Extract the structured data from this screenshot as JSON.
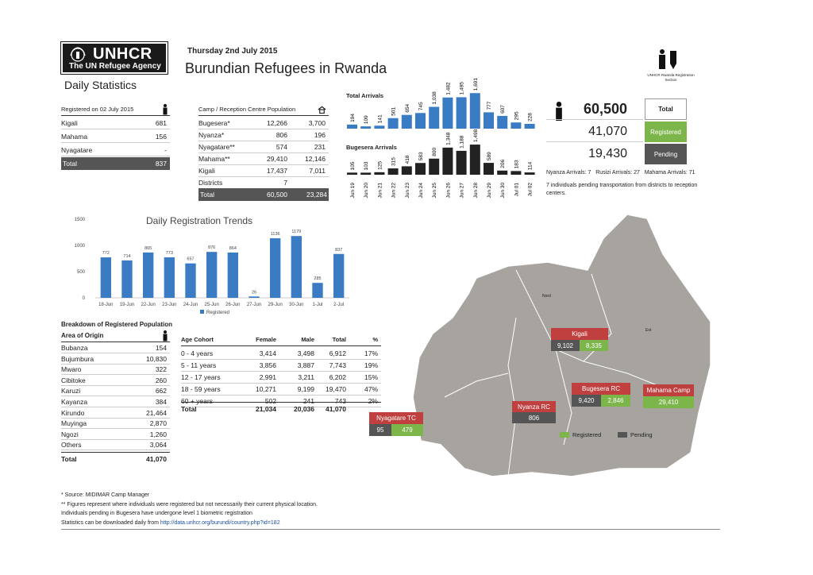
{
  "header": {
    "logo_name": "UNHCR",
    "logo_tagline": "The UN Refugee Agency",
    "date": "Thursday 2nd July 2015",
    "title": "Burundian Refugees in Rwanda",
    "subtitle": "Daily Statistics"
  },
  "registered_table": {
    "header": "Registered on 02 July 2015",
    "rows": [
      {
        "name": "Kigali",
        "value": "681"
      },
      {
        "name": "Mahama",
        "value": "156"
      },
      {
        "name": "Nyagatare",
        "value": "-"
      }
    ],
    "total_label": "Total",
    "total_value": "837"
  },
  "camp_table": {
    "header": "Camp / Reception Centre Population",
    "rows": [
      {
        "name": "Bugesera*",
        "a": "12,266",
        "b": "3,700"
      },
      {
        "name": "Nyanza*",
        "a": "806",
        "b": "196"
      },
      {
        "name": "Nyagatare**",
        "a": "574",
        "b": "231"
      },
      {
        "name": "Mahama**",
        "a": "29,410",
        "b": "12,146"
      },
      {
        "name": "Kigali",
        "a": "17,437",
        "b": "7,011"
      },
      {
        "name": "Districts",
        "a": "7",
        "b": ""
      }
    ],
    "total_label": "Total",
    "total_a": "60,500",
    "total_b": "23,284"
  },
  "arrivals_chart": {
    "type": "bar",
    "title_total": "Total Arrivals",
    "title_bugesera": "Bugesera Arrivals",
    "categories": [
      "Jun 19",
      "Jun 20",
      "Jun 21",
      "Jun 22",
      "Jun 23",
      "Jun 24",
      "Jun 25",
      "Jun 26",
      "Jun 27",
      "Jun 28",
      "Jun 29",
      "Jun 30",
      "Jul 01",
      "Jul 02"
    ],
    "total_values": [
      194,
      109,
      141,
      501,
      654,
      745,
      1038,
      1482,
      1495,
      1691,
      777,
      607,
      295,
      228
    ],
    "total_labels": [
      "194",
      "109",
      "141",
      "501",
      "654",
      "745",
      "1,038",
      "1,482",
      "1,495",
      "1,691",
      "777",
      "607",
      "295",
      "228"
    ],
    "bugesera_values": [
      105,
      103,
      125,
      315,
      418,
      583,
      800,
      1348,
      1188,
      1498,
      589,
      206,
      183,
      114
    ],
    "bugesera_labels": [
      "105",
      "103",
      "125",
      "315",
      "418",
      "583",
      "800",
      "1,348",
      "1,188",
      "1,498",
      "589",
      "206",
      "183",
      "114"
    ]
  },
  "summary": {
    "total_value": "60,500",
    "total_label": "Total",
    "registered_value": "41,070",
    "registered_label": "Registered",
    "pending_value": "19,430",
    "pending_label": "Pending",
    "arrivals_line": "Nyanza Arrivals: 7   Rusizi Arrivals: 27   Mahama Arrivals: 71",
    "note": "7 individuals pending transportation from districts to reception centers.",
    "top_icon_caption": "UNHCR Rwanda Registration Section"
  },
  "chart_data": {
    "type": "bar",
    "title": "Daily Registration Trends",
    "categories": [
      "18-Jun",
      "19-Jun",
      "22-Jun",
      "23-Jun",
      "24-Jun",
      "25-Jun",
      "26-Jun",
      "27-Jun",
      "29-Jun",
      "30-Jun",
      "1-Jul",
      "2-Jul"
    ],
    "series": [
      {
        "name": "Registered",
        "values": [
          772,
          714,
          865,
          773,
          657,
          876,
          864,
          26,
          1136,
          1179,
          285,
          837
        ]
      }
    ],
    "ylim": [
      0,
      1500
    ],
    "yticks": [
      "1500",
      "1000",
      "500",
      "0"
    ],
    "legend": "bottom",
    "color": "#3a7cc4"
  },
  "origin_table": {
    "section_title": "Breakdown of Registered Population",
    "header": "Area of Origin",
    "rows": [
      {
        "name": "Bubanza",
        "value": "154"
      },
      {
        "name": "Bujumbura",
        "value": "10,830"
      },
      {
        "name": "Mwaro",
        "value": "322"
      },
      {
        "name": "Cibitoke",
        "value": "260"
      },
      {
        "name": "Karuzi",
        "value": "662"
      },
      {
        "name": "Kayanza",
        "value": "384"
      },
      {
        "name": "Kirundo",
        "value": "21,464"
      },
      {
        "name": "Muyinga",
        "value": "2,870"
      },
      {
        "name": "Ngozi",
        "value": "1,260"
      },
      {
        "name": "Others",
        "value": "3,064"
      }
    ],
    "total_label": "Total",
    "total_value": "41,070"
  },
  "age_table": {
    "headers": [
      "Age Cohort",
      "Female",
      "Male",
      "Total",
      "%"
    ],
    "rows": [
      [
        "0 - 4 years",
        "3,414",
        "3,498",
        "6,912",
        "17%"
      ],
      [
        "5 - 11 years",
        "3,856",
        "3,887",
        "7,743",
        "19%"
      ],
      [
        "12 - 17 years",
        "2,991",
        "3,211",
        "6,202",
        "15%"
      ],
      [
        "18 - 59 years",
        "10,271",
        "9,199",
        "19,470",
        "47%"
      ],
      [
        "60 + years",
        "502",
        "241",
        "743",
        "2%"
      ]
    ],
    "total": [
      "Total",
      "21,034",
      "20,036",
      "41,070",
      ""
    ]
  },
  "map": {
    "label_nord": "Nord",
    "label_est": "Est",
    "legend_registered": "Registered",
    "legend_pending": "Pending",
    "kigali": {
      "name": "Kigali",
      "pending": "9,102",
      "registered": "8,335"
    },
    "bugesera": {
      "name": "Bugesera RC",
      "pending": "9,420",
      "registered": "2,846"
    },
    "mahama": {
      "name": "Mahama Camp",
      "registered": "29,410"
    },
    "nyanza": {
      "name": "Nyanza RC",
      "pending": "806"
    },
    "nyagatare": {
      "name": "Nyagatare TC",
      "pending": "95",
      "registered": "479"
    },
    "colors": {
      "registered": "#7cb54a",
      "pending": "#555555",
      "label": "#c0403f"
    }
  },
  "footnotes": {
    "f1": "* Source: MIDIMAR Camp Manager",
    "f2": "** Figures represent where individuals were registered but not necessarily their current physical location.",
    "f3": "Individuals pending in Bugesera have undergone level 1 biometric registration",
    "f4_prefix": "Statistics can be downloaded daily from",
    "f4_link": "http://data.unhcr.org/burundi/country.php?id=182"
  }
}
